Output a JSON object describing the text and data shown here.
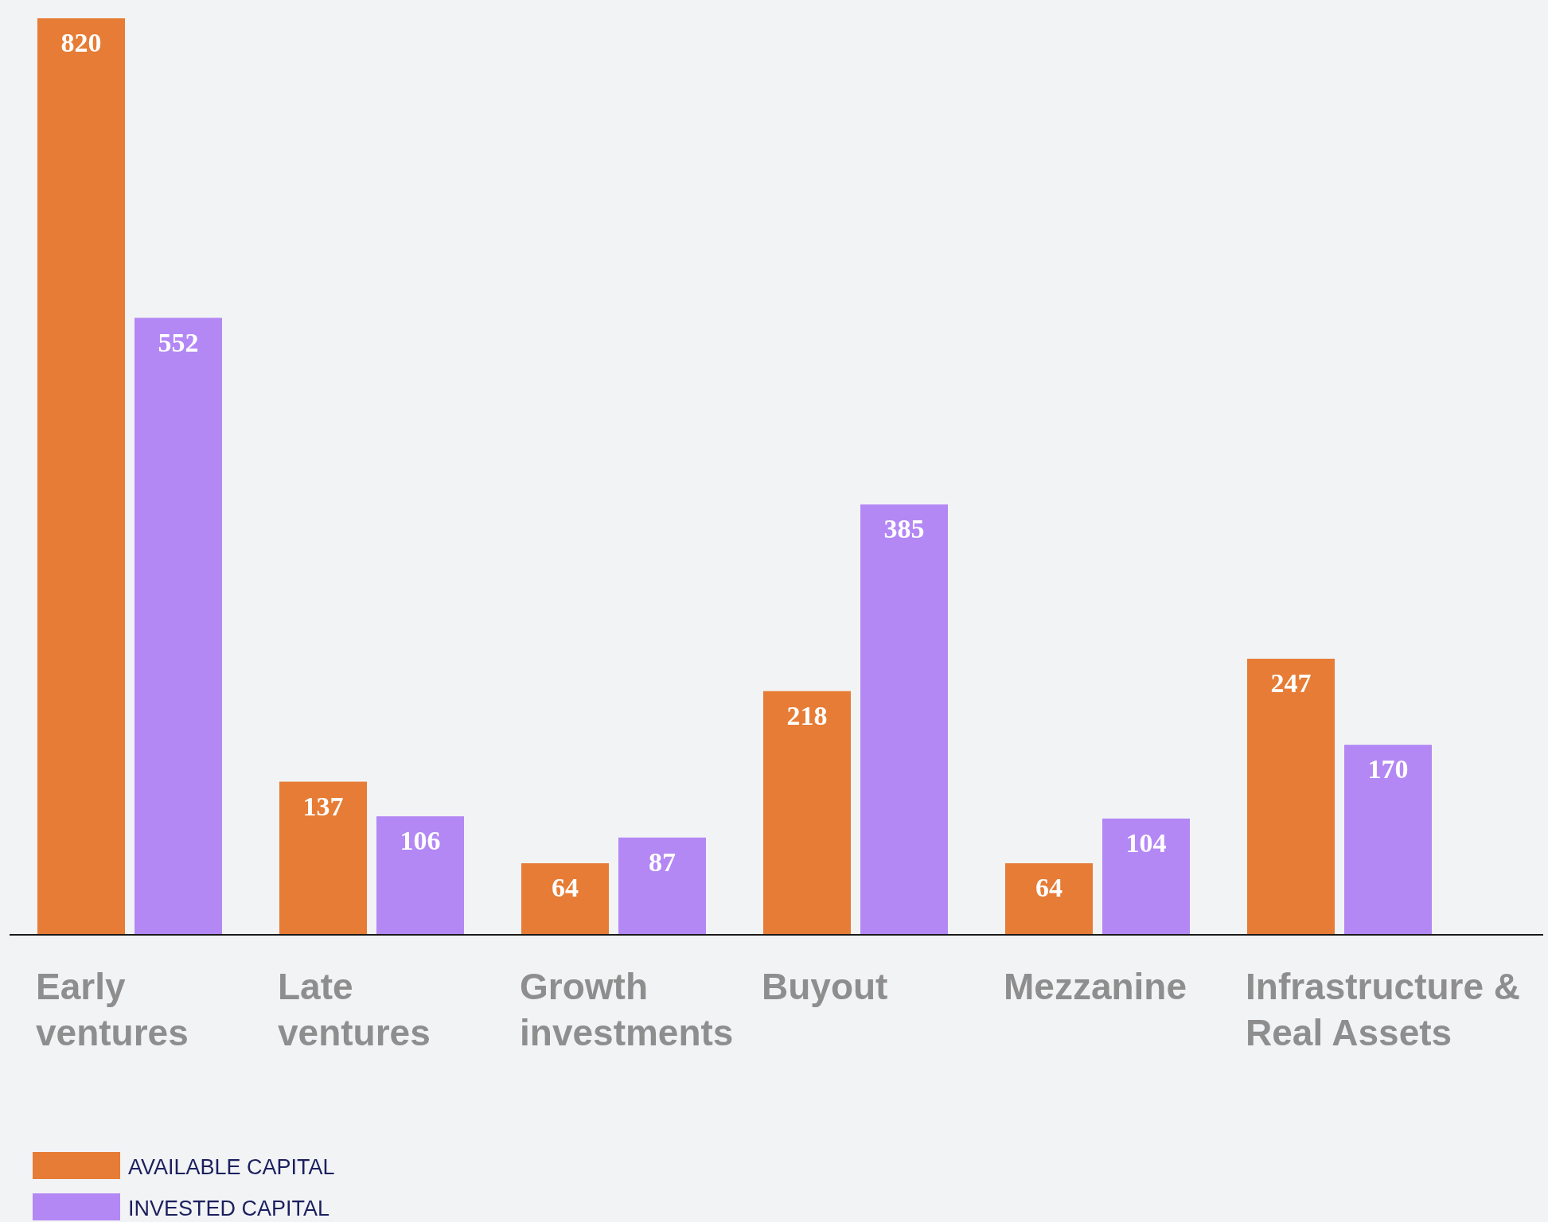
{
  "chart_data": {
    "type": "bar",
    "categories": [
      "Early\nventures",
      "Late\nventures",
      "Growth\ninvestments",
      "Buyout",
      "Mezzanine",
      "Infrastructure &\nReal Assets"
    ],
    "series": [
      {
        "name": "AVAILABLE CAPITAL",
        "color": "#e67c35",
        "values": [
          820,
          137,
          64,
          218,
          64,
          247
        ]
      },
      {
        "name": "INVESTED CAPITAL",
        "color": "#b388f5",
        "values": [
          552,
          106,
          87,
          385,
          104,
          170
        ]
      }
    ],
    "data_labels": true,
    "legend": "bottom left"
  }
}
